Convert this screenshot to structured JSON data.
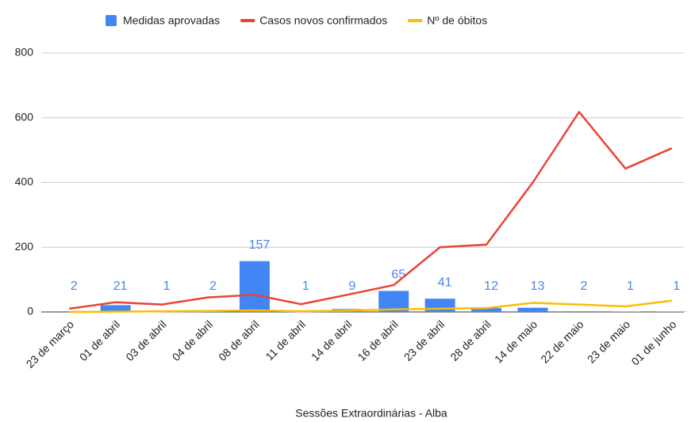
{
  "chart_data": {
    "type": "bar_line",
    "x_label": "Sessões Extraordinárias - Alba",
    "categories": [
      "23 de março",
      "01 de abril",
      "03 de abril",
      "04 de abril",
      "08 de abril",
      "11 de abril",
      "14 de abril",
      "16 de abril",
      "23 de abril",
      "28 de abril",
      "14 de maio",
      "22 de maio",
      "23 de maio",
      "01 de junho"
    ],
    "series": [
      {
        "name": "Medidas aprovadas",
        "type": "bar",
        "color": "#4285f4",
        "values": [
          2,
          21,
          1,
          2,
          157,
          1,
          9,
          65,
          41,
          12,
          13,
          2,
          1,
          1
        ]
      },
      {
        "name": "Casos novos confirmados",
        "type": "line",
        "color": "#ea4335",
        "values": [
          10,
          30,
          23,
          45,
          53,
          24,
          53,
          83,
          200,
          208,
          400,
          618,
          443,
          506
        ]
      },
      {
        "name": "Nº de óbitos",
        "type": "line",
        "color": "#fbbc04",
        "values": [
          0,
          1,
          2,
          3,
          5,
          2,
          4,
          8,
          10,
          12,
          28,
          23,
          17,
          35
        ]
      }
    ],
    "ylim": [
      0,
      800
    ],
    "yticks": [
      0,
      200,
      400,
      600,
      800
    ],
    "grid": true,
    "legend": "top"
  }
}
